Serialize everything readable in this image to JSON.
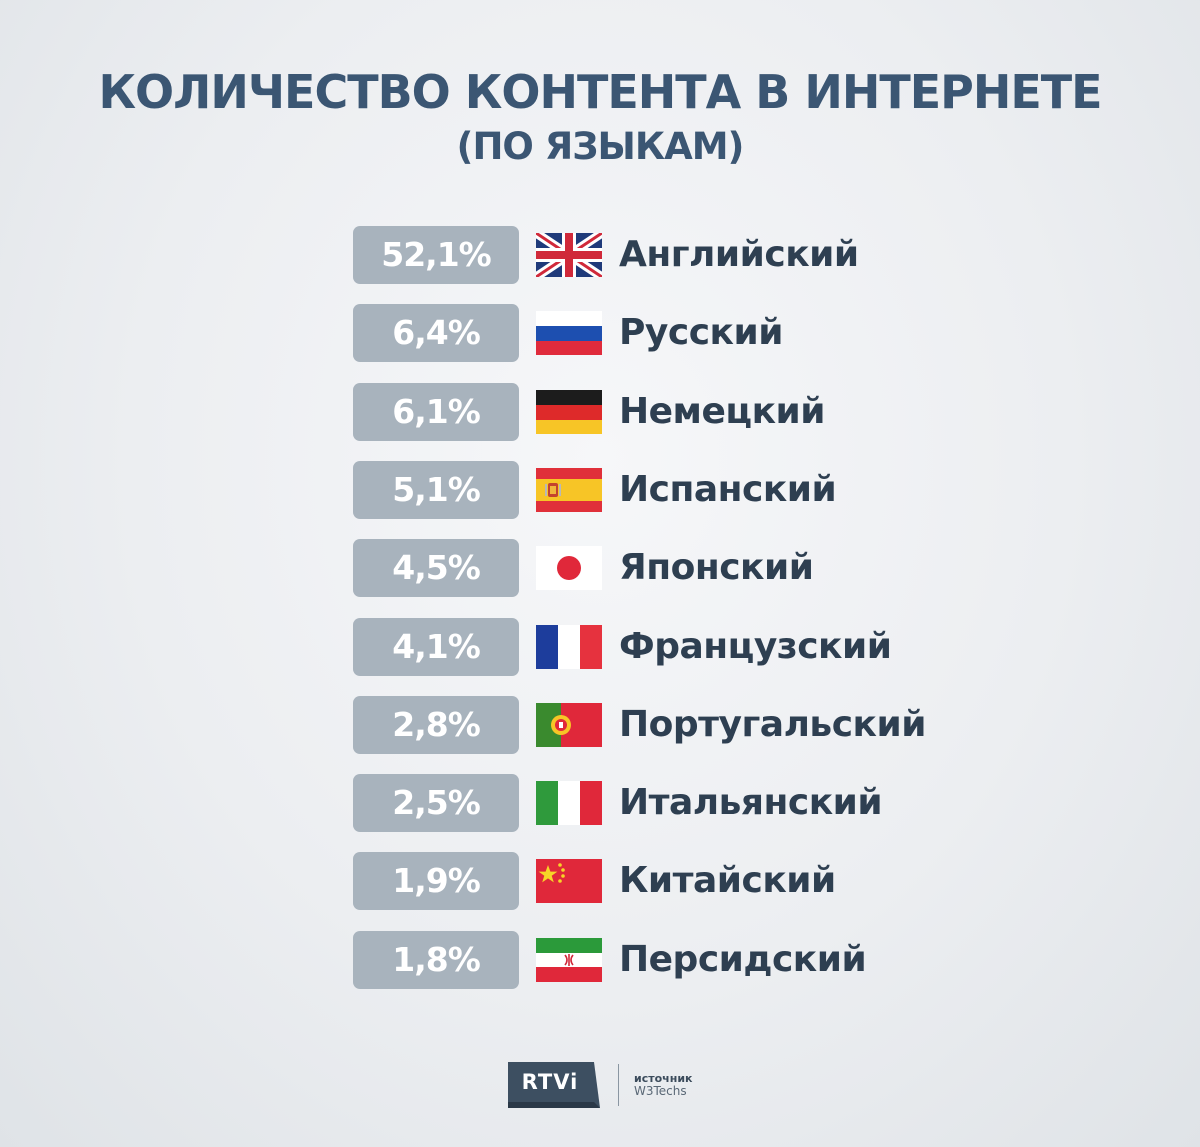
{
  "title": "КОЛИЧЕСТВО КОНТЕНТА В ИНТЕРНЕТЕ",
  "subtitle": "(ПО ЯЗЫКАМ)",
  "chart_data": {
    "type": "table",
    "title": "КОЛИЧЕСТВО КОНТЕНТА В ИНТЕРНЕТЕ",
    "subtitle": "(ПО ЯЗЫКАМ)",
    "columns": [
      "percent",
      "flag",
      "language"
    ],
    "rows": [
      {
        "value": 52.1,
        "label": "52,1%",
        "language": "Английский",
        "flag": "uk-flag-icon"
      },
      {
        "value": 6.4,
        "label": "6,4%",
        "language": "Русский",
        "flag": "russia-flag-icon"
      },
      {
        "value": 6.1,
        "label": "6,1%",
        "language": "Немецкий",
        "flag": "germany-flag-icon"
      },
      {
        "value": 5.1,
        "label": "5,1%",
        "language": "Испанский",
        "flag": "spain-flag-icon"
      },
      {
        "value": 4.5,
        "label": "4,5%",
        "language": "Японский",
        "flag": "japan-flag-icon"
      },
      {
        "value": 4.1,
        "label": "4,1%",
        "language": "Французский",
        "flag": "france-flag-icon"
      },
      {
        "value": 2.8,
        "label": "2,8%",
        "language": "Португальский",
        "flag": "portugal-flag-icon"
      },
      {
        "value": 2.5,
        "label": "2,5%",
        "language": "Итальянский",
        "flag": "italy-flag-icon"
      },
      {
        "value": 1.9,
        "label": "1,9%",
        "language": "Китайский",
        "flag": "china-flag-icon"
      },
      {
        "value": 1.8,
        "label": "1,8%",
        "language": "Персидский",
        "flag": "iran-flag-icon"
      }
    ]
  },
  "colors": {
    "title": "#3b5673",
    "badge": "#a8b3bd",
    "language_text": "#2e3f51",
    "logo_bg": "#3d4f61"
  },
  "footer": {
    "logo_text": "RTVi",
    "source_label": "источник",
    "source_name": "W3Techs"
  }
}
